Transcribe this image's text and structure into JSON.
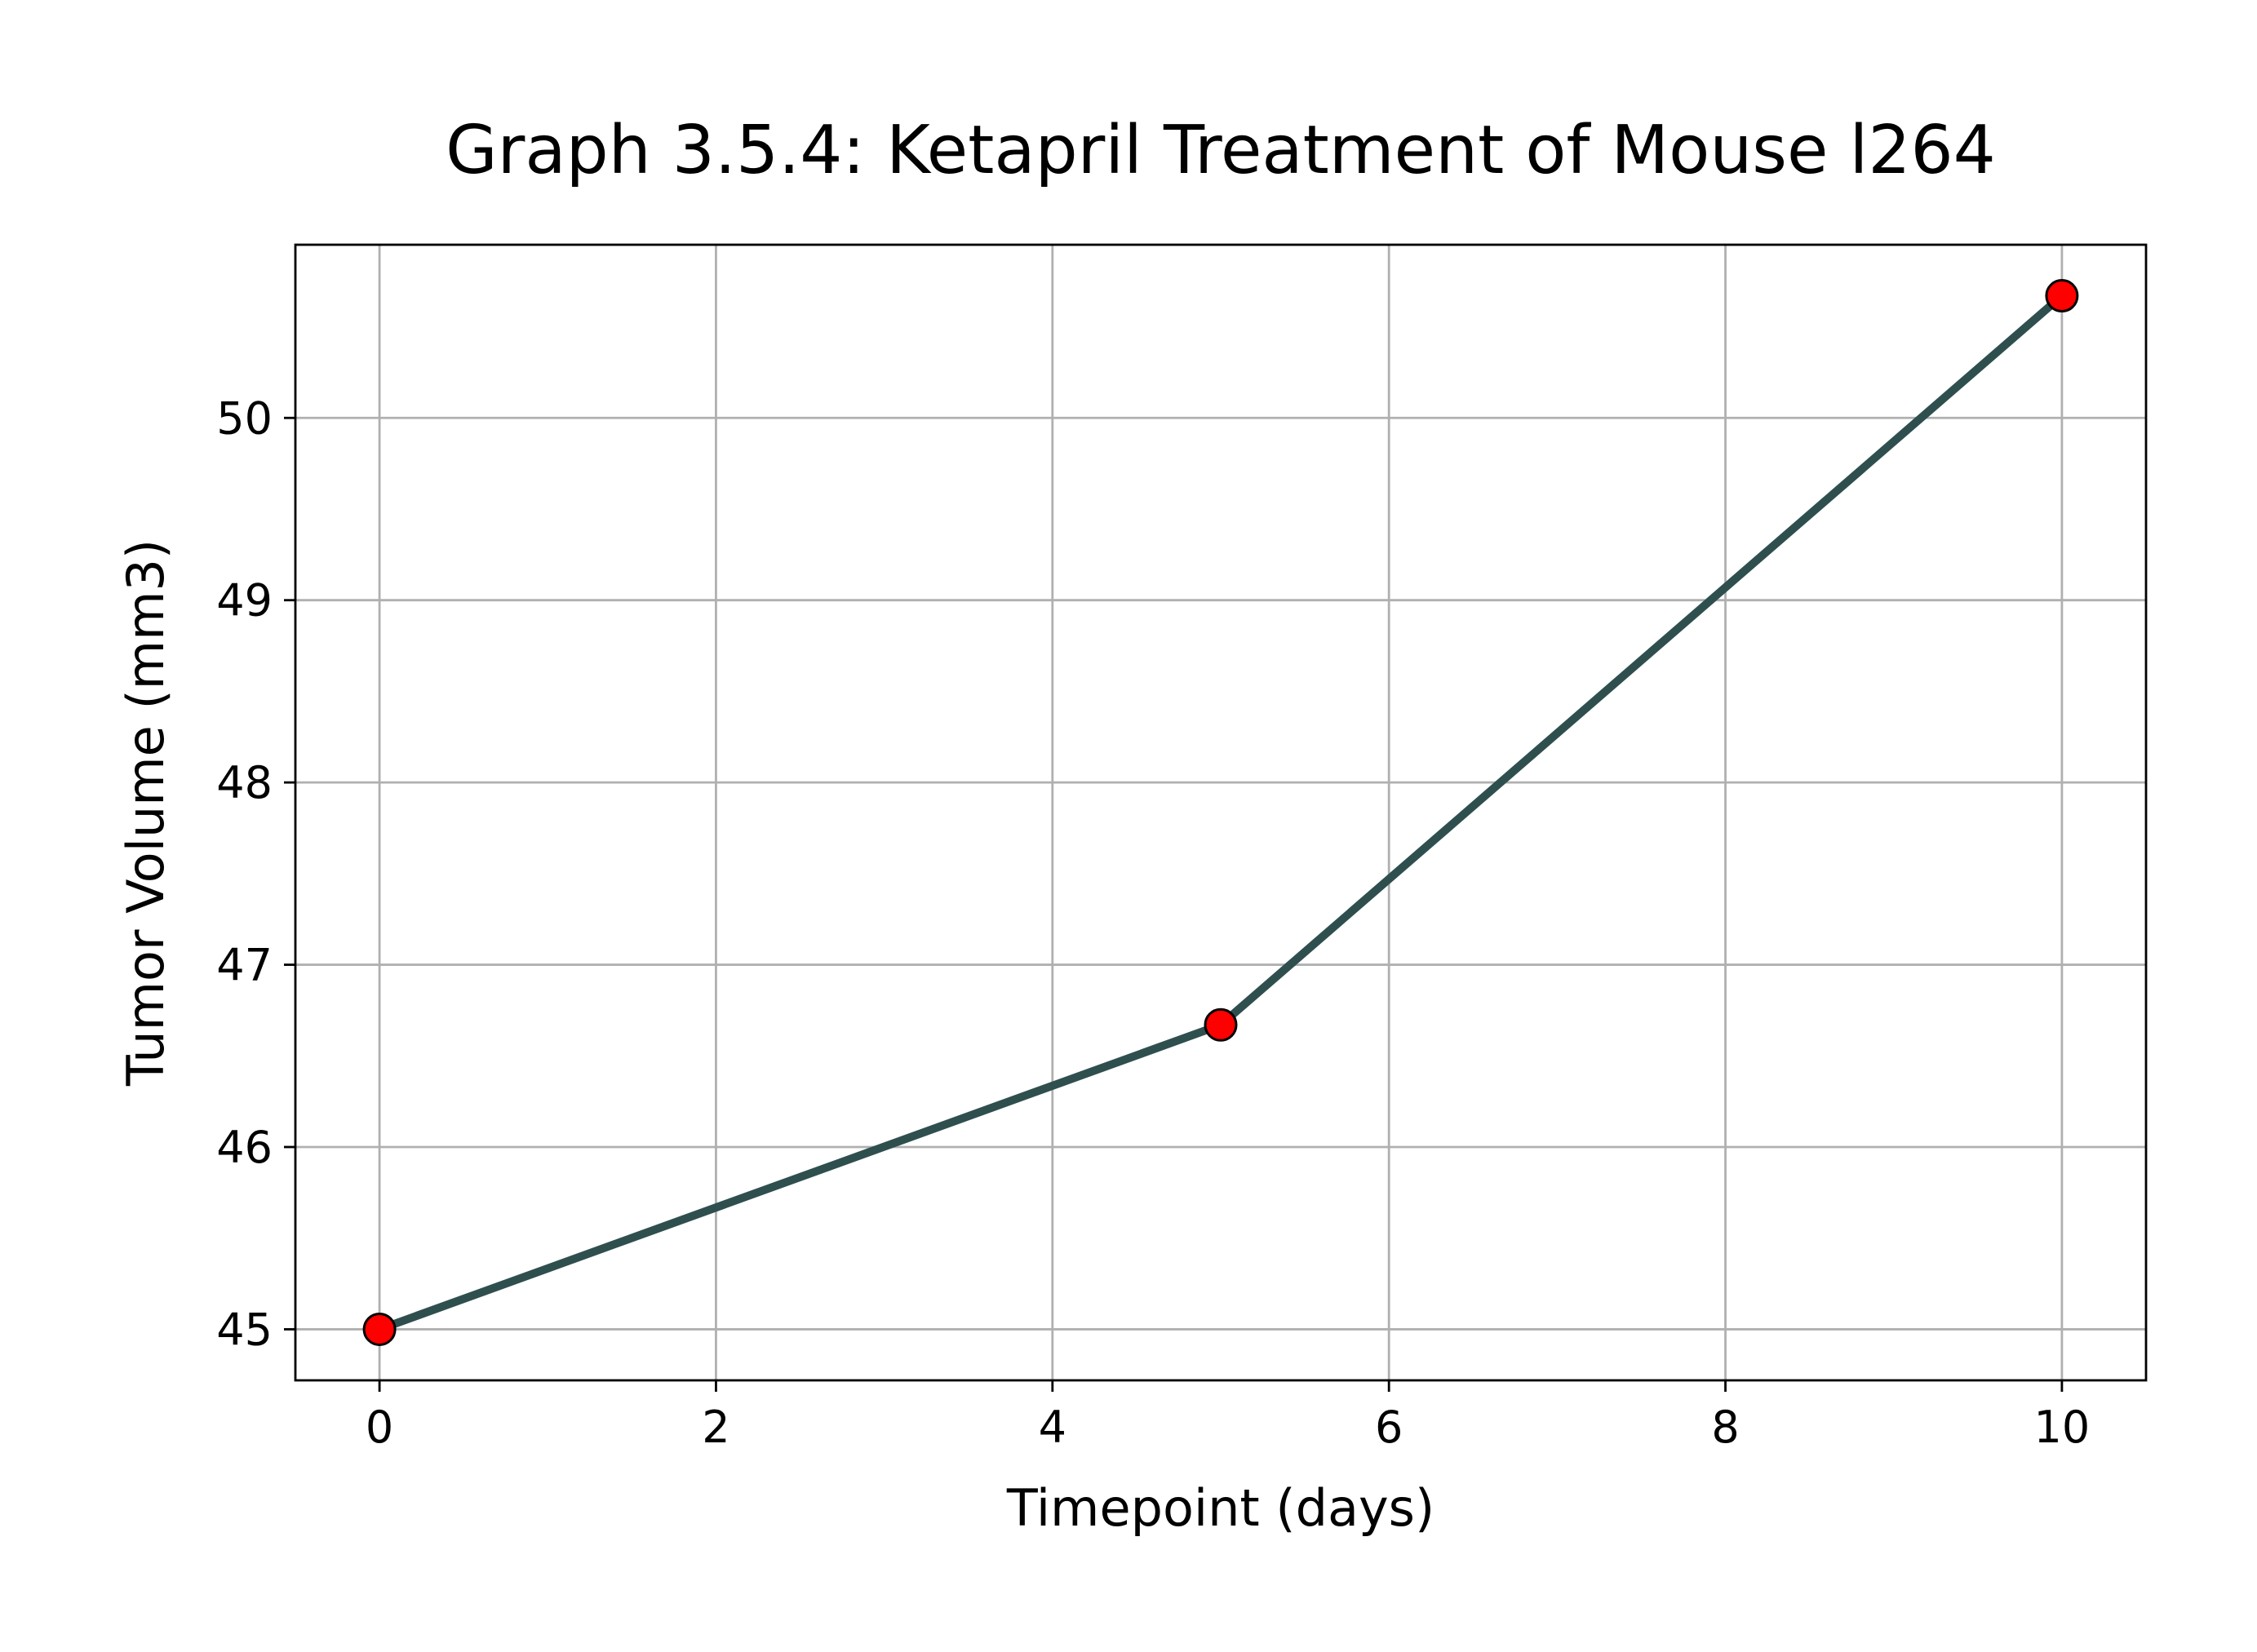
{
  "chart_data": {
    "type": "line",
    "title": "Graph 3.5.4: Ketapril Treatment of Mouse l264",
    "xlabel": "Timepoint (days)",
    "ylabel": "Tumor Volume (mm3)",
    "xlim": [
      -0.5,
      10.5
    ],
    "ylim": [
      44.72,
      50.95
    ],
    "xticks": [
      0,
      2,
      4,
      6,
      8,
      10
    ],
    "yticks": [
      45,
      46,
      47,
      48,
      49,
      50
    ],
    "grid": true,
    "legend": "none",
    "series": [
      {
        "x": [
          0,
          5,
          10
        ],
        "values": [
          45.0,
          46.67,
          50.67
        ],
        "line_color": "#2f4f4f",
        "marker_color": "#ff0000",
        "marker_edge_color": "#000000"
      }
    ]
  }
}
